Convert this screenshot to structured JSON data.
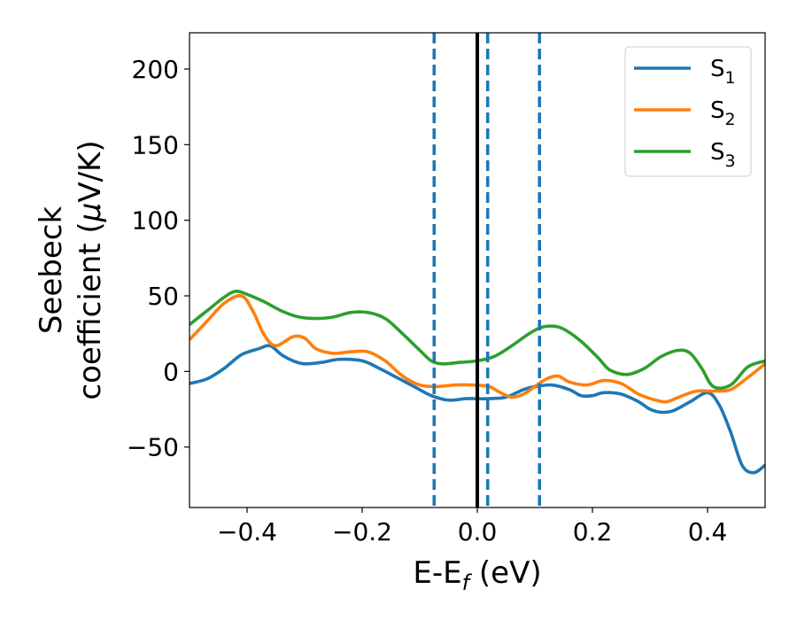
{
  "chart_data": {
    "type": "line",
    "xlabel": "E-E",
    "xlabel_sub": "f",
    "xlabel_unit": " (eV)",
    "ylabel_line1": "Seebeck",
    "ylabel_line2": "coefficient  (",
    "ylabel_mu": "μ",
    "ylabel_unit": "V/K)",
    "xlim": [
      -0.5,
      0.5
    ],
    "ylim": [
      -90,
      224
    ],
    "xticks": [
      -0.4,
      -0.2,
      0.0,
      0.2,
      0.4
    ],
    "xtick_labels": [
      "−0.4",
      "−0.2",
      "0.0",
      "0.2",
      "0.4"
    ],
    "yticks": [
      -50,
      0,
      50,
      100,
      150,
      200
    ],
    "ytick_labels": [
      "−50",
      "0",
      "50",
      "100",
      "150",
      "200"
    ],
    "grid": false,
    "legend_position": "top-right",
    "vlines": [
      {
        "x": 0.0,
        "style": "solid",
        "color": "#000000"
      },
      {
        "x": -0.075,
        "style": "dashed",
        "color": "#1f77b4"
      },
      {
        "x": 0.018,
        "style": "dashed",
        "color": "#1f77b4"
      },
      {
        "x": 0.108,
        "style": "dashed",
        "color": "#1f77b4"
      }
    ],
    "series": [
      {
        "name": "S",
        "sub": "1",
        "color": "#1f77b4",
        "x": [
          -0.5,
          -0.47,
          -0.44,
          -0.41,
          -0.38,
          -0.36,
          -0.34,
          -0.32,
          -0.3,
          -0.27,
          -0.24,
          -0.2,
          -0.17,
          -0.14,
          -0.11,
          -0.08,
          -0.05,
          -0.02,
          0.0,
          0.02,
          0.05,
          0.08,
          0.1,
          0.13,
          0.16,
          0.18,
          0.2,
          0.22,
          0.25,
          0.28,
          0.3,
          0.32,
          0.34,
          0.37,
          0.4,
          0.42,
          0.44,
          0.46,
          0.48,
          0.5
        ],
        "y": [
          -8,
          -5,
          2,
          11,
          15,
          17,
          11,
          7,
          5,
          6,
          8,
          7,
          2,
          -4,
          -10,
          -16,
          -19,
          -18,
          -18,
          -18,
          -17,
          -12,
          -10,
          -9,
          -12,
          -16,
          -16,
          -14,
          -15,
          -20,
          -25,
          -27,
          -26,
          -20,
          -14,
          -22,
          -40,
          -62,
          -67,
          -62
        ]
      },
      {
        "name": "S",
        "sub": "2",
        "color": "#ff7f0e",
        "x": [
          -0.5,
          -0.47,
          -0.44,
          -0.41,
          -0.39,
          -0.37,
          -0.35,
          -0.32,
          -0.3,
          -0.28,
          -0.25,
          -0.22,
          -0.19,
          -0.16,
          -0.13,
          -0.1,
          -0.07,
          -0.04,
          -0.01,
          0.02,
          0.04,
          0.06,
          0.08,
          0.1,
          0.12,
          0.14,
          0.16,
          0.19,
          0.22,
          0.25,
          0.28,
          0.31,
          0.33,
          0.35,
          0.38,
          0.41,
          0.44,
          0.47,
          0.5
        ],
        "y": [
          21,
          33,
          45,
          50,
          40,
          24,
          17,
          23,
          22,
          15,
          12,
          13,
          13,
          7,
          -3,
          -9,
          -10,
          -9,
          -9,
          -10,
          -14,
          -17,
          -15,
          -10,
          -5,
          -3,
          -7,
          -9,
          -6,
          -8,
          -15,
          -19,
          -20,
          -17,
          -13,
          -13,
          -12,
          -4,
          5
        ]
      },
      {
        "name": "S",
        "sub": "3",
        "color": "#2ca02c",
        "x": [
          -0.5,
          -0.47,
          -0.44,
          -0.42,
          -0.4,
          -0.37,
          -0.34,
          -0.31,
          -0.28,
          -0.25,
          -0.22,
          -0.19,
          -0.16,
          -0.13,
          -0.1,
          -0.08,
          -0.06,
          -0.03,
          0.0,
          0.03,
          0.06,
          0.09,
          0.11,
          0.13,
          0.15,
          0.18,
          0.21,
          0.23,
          0.26,
          0.29,
          0.32,
          0.35,
          0.37,
          0.39,
          0.41,
          0.44,
          0.47,
          0.5
        ],
        "y": [
          31,
          40,
          49,
          53,
          51,
          46,
          40,
          36,
          35,
          36,
          39,
          39,
          35,
          25,
          14,
          7,
          5,
          6,
          7,
          10,
          17,
          25,
          29,
          30,
          28,
          20,
          9,
          1,
          -2,
          2,
          10,
          14,
          12,
          2,
          -10,
          -9,
          3,
          7
        ]
      }
    ]
  }
}
